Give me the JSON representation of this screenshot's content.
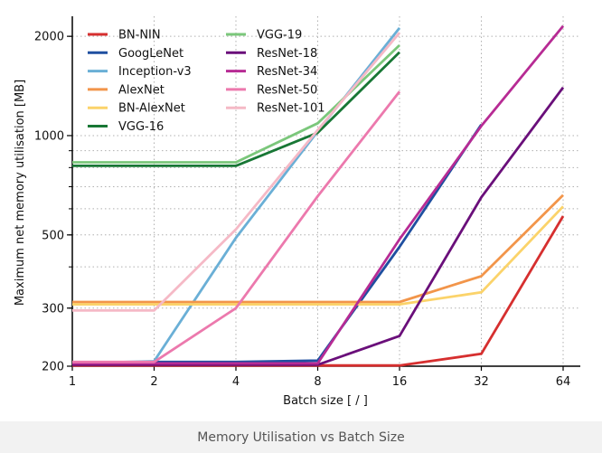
{
  "caption": "Memory Utilisation vs Batch Size",
  "chart_data": {
    "type": "line",
    "title": "",
    "xlabel": "Batch size [ / ]",
    "ylabel": "Maximum net memory utilisation [MB]",
    "x": [
      1,
      2,
      4,
      8,
      16,
      32,
      64
    ],
    "x_tick_labels": [
      "1",
      "2",
      "4",
      "8",
      "16",
      "32",
      "64"
    ],
    "x_scale": "log2",
    "y_scale": "log",
    "ylim": [
      200,
      2300
    ],
    "y_ticks": [
      200,
      300,
      500,
      1000,
      2000
    ],
    "y_tick_labels": [
      "200",
      "300",
      "500",
      "1000",
      "2000"
    ],
    "grid": true,
    "legend_position": "top-left",
    "series": [
      {
        "name": "BN-NIN",
        "color": "#d62f2f",
        "values": [
          201,
          201,
          201,
          201,
          201,
          218,
          570
        ]
      },
      {
        "name": "GoogLeNet",
        "color": "#1f4fa0",
        "values": [
          205,
          206,
          206,
          208,
          460,
          1080,
          null
        ]
      },
      {
        "name": "Inception-v3",
        "color": "#6aafd6",
        "values": [
          204,
          207,
          490,
          1030,
          2120,
          null,
          null
        ]
      },
      {
        "name": "AlexNet",
        "color": "#f2954a",
        "values": [
          313,
          313,
          313,
          313,
          313,
          375,
          660
        ]
      },
      {
        "name": "BN-AlexNet",
        "color": "#fbd36a",
        "values": [
          308,
          308,
          308,
          308,
          308,
          335,
          610
        ]
      },
      {
        "name": "VGG-16",
        "color": "#187735",
        "values": [
          810,
          810,
          810,
          1020,
          1790,
          null,
          null
        ]
      },
      {
        "name": "VGG-19",
        "color": "#7bc77b",
        "values": [
          830,
          830,
          830,
          1090,
          1880,
          null,
          null
        ]
      },
      {
        "name": "ResNet-18",
        "color": "#6a0f7a",
        "values": [
          202,
          202,
          202,
          202,
          247,
          650,
          1400
        ]
      },
      {
        "name": "ResNet-34",
        "color": "#b72b94",
        "values": [
          204,
          204,
          204,
          204,
          485,
          1070,
          2150
        ]
      },
      {
        "name": "ResNet-50",
        "color": "#ec79ad",
        "values": [
          206,
          206,
          300,
          655,
          1360,
          null,
          null
        ]
      },
      {
        "name": "ResNet-101",
        "color": "#f5b9c6",
        "values": [
          295,
          295,
          520,
          1040,
          2050,
          null,
          null
        ]
      }
    ]
  }
}
